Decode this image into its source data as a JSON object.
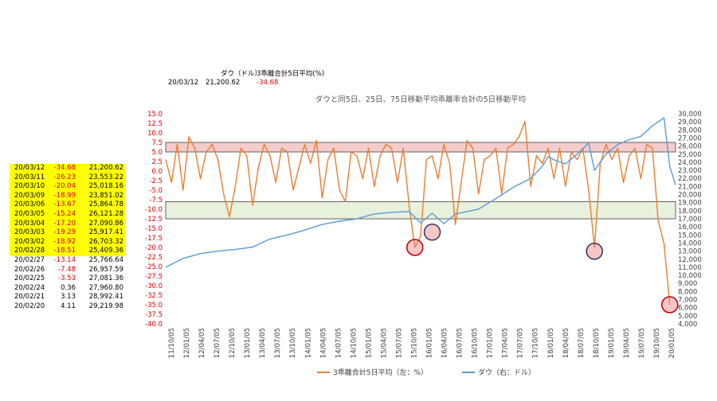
{
  "header": {
    "col_dow": "ダウ（ドル）",
    "col_dev": "3乖離合計5日平均(%)",
    "date": "20/03/12",
    "dow": "21,200.62",
    "dev": "-34.68"
  },
  "table": [
    {
      "date": "20/03/12",
      "val": "-34.68",
      "dow": "21,200.62",
      "highlight": true,
      "neg": true
    },
    {
      "date": "20/03/11",
      "val": "-26.23",
      "dow": "23,553.22",
      "highlight": true,
      "neg": true
    },
    {
      "date": "20/03/10",
      "val": "-20.04",
      "dow": "25,018.16",
      "highlight": true,
      "neg": true
    },
    {
      "date": "20/03/09",
      "val": "-18.99",
      "dow": "23,851.02",
      "highlight": true,
      "neg": true
    },
    {
      "date": "20/03/06",
      "val": "-13.67",
      "dow": "25,864.78",
      "highlight": true,
      "neg": true
    },
    {
      "date": "20/03/05",
      "val": "-15.24",
      "dow": "26,121.28",
      "highlight": true,
      "neg": true
    },
    {
      "date": "20/03/04",
      "val": "-17.20",
      "dow": "27,090.86",
      "highlight": true,
      "neg": true
    },
    {
      "date": "20/03/03",
      "val": "-19.29",
      "dow": "25,917.41",
      "highlight": true,
      "neg": true
    },
    {
      "date": "20/03/02",
      "val": "-18.92",
      "dow": "26,703.32",
      "highlight": true,
      "neg": true
    },
    {
      "date": "20/02/28",
      "val": "-18.51",
      "dow": "25,409.36",
      "highlight": true,
      "neg": true
    },
    {
      "date": "20/02/27",
      "val": "-13.14",
      "dow": "25,766.64",
      "highlight": false,
      "neg": true
    },
    {
      "date": "20/02/26",
      "val": "-7.48",
      "dow": "26,957.59",
      "highlight": false,
      "neg": true
    },
    {
      "date": "20/02/25",
      "val": "-3.53",
      "dow": "27,081.36",
      "highlight": false,
      "neg": true
    },
    {
      "date": "20/02/24",
      "val": "0.36",
      "dow": "27,960.80",
      "highlight": false,
      "neg": false
    },
    {
      "date": "20/02/21",
      "val": "3.13",
      "dow": "28,992.41",
      "highlight": false,
      "neg": false
    },
    {
      "date": "20/02/20",
      "val": "4.11",
      "dow": "29,219.98",
      "highlight": false,
      "neg": false
    }
  ],
  "chart_data": {
    "type": "line",
    "title": "ダウと同5日、25日、75日移動平均乖離率合計の5日移動平均",
    "y_left": {
      "min": -40,
      "max": 15,
      "step": 2.5
    },
    "y_right": {
      "min": 4000,
      "max": 30000,
      "step": 1000
    },
    "x_ticks": [
      "11/10/05",
      "12/01/05",
      "12/04/05",
      "12/07/05",
      "12/10/05",
      "13/01/05",
      "13/04/05",
      "13/07/05",
      "13/10/05",
      "14/01/05",
      "14/04/05",
      "14/07/05",
      "14/10/05",
      "15/01/05",
      "15/04/05",
      "15/07/05",
      "15/10/05",
      "16/01/05",
      "16/04/05",
      "16/07/05",
      "16/10/05",
      "17/01/05",
      "17/04/05",
      "17/07/05",
      "17/10/05",
      "18/01/05",
      "18/04/05",
      "18/07/05",
      "18/10/05",
      "19/01/05",
      "19/04/05",
      "19/07/05",
      "19/10/05",
      "20/01/05"
    ],
    "series": [
      {
        "name": "3乖離合計5日平均（左：%）",
        "axis": "left",
        "color": "#ed7d31",
        "points": [
          [
            0,
            3
          ],
          [
            1,
            -3
          ],
          [
            2,
            7
          ],
          [
            3,
            -5
          ],
          [
            4,
            9
          ],
          [
            5,
            6
          ],
          [
            6,
            -2
          ],
          [
            7,
            5
          ],
          [
            8,
            7
          ],
          [
            9,
            3
          ],
          [
            10,
            -6
          ],
          [
            11,
            -12
          ],
          [
            12,
            -4
          ],
          [
            13,
            6
          ],
          [
            14,
            4
          ],
          [
            15,
            -9
          ],
          [
            16,
            1
          ],
          [
            17,
            7
          ],
          [
            18,
            4
          ],
          [
            19,
            -3
          ],
          [
            20,
            6
          ],
          [
            21,
            5
          ],
          [
            22,
            -5
          ],
          [
            23,
            1
          ],
          [
            24,
            7
          ],
          [
            25,
            2
          ],
          [
            26,
            8
          ],
          [
            27,
            -7
          ],
          [
            28,
            3
          ],
          [
            29,
            6
          ],
          [
            30,
            -5
          ],
          [
            31,
            -8
          ],
          [
            32,
            5
          ],
          [
            33,
            4
          ],
          [
            34,
            -2
          ],
          [
            35,
            6
          ],
          [
            36,
            -4
          ],
          [
            37,
            4
          ],
          [
            38,
            7
          ],
          [
            39,
            6
          ],
          [
            40,
            -3
          ],
          [
            41,
            6
          ],
          [
            42,
            -9
          ],
          [
            43,
            -20
          ],
          [
            44,
            -17
          ],
          [
            45,
            3
          ],
          [
            46,
            4
          ],
          [
            47,
            -2
          ],
          [
            48,
            7
          ],
          [
            49,
            2
          ],
          [
            50,
            -14
          ],
          [
            51,
            -3
          ],
          [
            52,
            8
          ],
          [
            53,
            6
          ],
          [
            54,
            -6
          ],
          [
            55,
            3
          ],
          [
            56,
            4
          ],
          [
            57,
            6
          ],
          [
            58,
            -6
          ],
          [
            59,
            6
          ],
          [
            60,
            7
          ],
          [
            61,
            9
          ],
          [
            62,
            13
          ],
          [
            63,
            -4
          ],
          [
            64,
            4
          ],
          [
            65,
            2
          ],
          [
            66,
            6
          ],
          [
            67,
            -2
          ],
          [
            68,
            6
          ],
          [
            69,
            -4
          ],
          [
            70,
            5
          ],
          [
            71,
            3
          ],
          [
            72,
            6
          ],
          [
            73,
            -5
          ],
          [
            74,
            -20
          ],
          [
            75,
            2
          ],
          [
            76,
            7
          ],
          [
            77,
            3
          ],
          [
            78,
            6
          ],
          [
            79,
            -3
          ],
          [
            80,
            4
          ],
          [
            81,
            6
          ],
          [
            82,
            -2
          ],
          [
            83,
            7
          ],
          [
            84,
            6
          ],
          [
            85,
            -13
          ],
          [
            86,
            -19
          ],
          [
            87,
            -35
          ]
        ]
      },
      {
        "name": "ダウ（右：ドル）",
        "axis": "right",
        "color": "#5b9bd5",
        "points": [
          [
            0,
            11000
          ],
          [
            3,
            12100
          ],
          [
            6,
            12700
          ],
          [
            9,
            13000
          ],
          [
            12,
            13200
          ],
          [
            15,
            13500
          ],
          [
            18,
            14500
          ],
          [
            21,
            15000
          ],
          [
            24,
            15600
          ],
          [
            27,
            16300
          ],
          [
            30,
            16700
          ],
          [
            33,
            17000
          ],
          [
            36,
            17600
          ],
          [
            39,
            17800
          ],
          [
            42,
            17900
          ],
          [
            44,
            16500
          ],
          [
            46,
            17700
          ],
          [
            48,
            16400
          ],
          [
            50,
            17600
          ],
          [
            52,
            17900
          ],
          [
            54,
            18200
          ],
          [
            57,
            19500
          ],
          [
            60,
            20900
          ],
          [
            63,
            22000
          ],
          [
            65,
            23500
          ],
          [
            66,
            24700
          ],
          [
            67,
            24300
          ],
          [
            69,
            23800
          ],
          [
            71,
            25000
          ],
          [
            73,
            26400
          ],
          [
            74,
            23000
          ],
          [
            76,
            25000
          ],
          [
            78,
            26200
          ],
          [
            80,
            26800
          ],
          [
            82,
            27200
          ],
          [
            84,
            28500
          ],
          [
            86,
            29500
          ],
          [
            87,
            23500
          ],
          [
            88,
            21200
          ]
        ]
      }
    ],
    "bands": [
      {
        "axis": "left",
        "from": 5,
        "to": 7.5,
        "color": "#f4cccc"
      },
      {
        "axis": "left",
        "from": -12.5,
        "to": -8,
        "color": "#e8f1dc"
      }
    ],
    "markers": [
      [
        43,
        -20
      ],
      [
        46,
        -16
      ],
      [
        74,
        -21
      ],
      [
        87,
        -35
      ]
    ],
    "legend": "bottom"
  }
}
